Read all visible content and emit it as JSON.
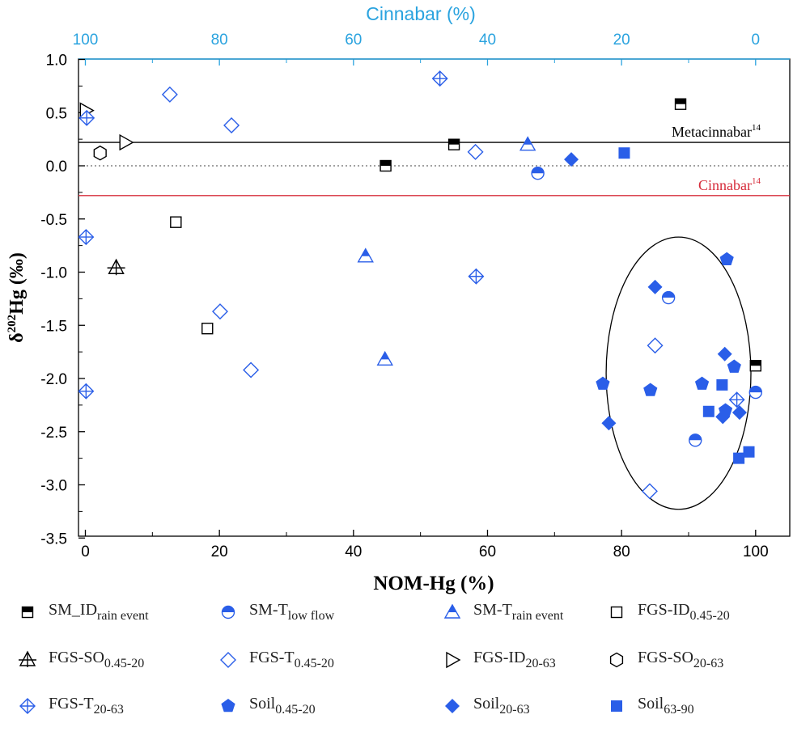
{
  "chart_data": {
    "type": "scatter",
    "xlabel": "NOM-Hg (%)",
    "ylabel_main": "δ",
    "ylabel_sup": "202",
    "ylabel_rest": "Hg (‰)",
    "top_axis_label": "Cinnabar (%)",
    "xlim": [
      -1,
      105
    ],
    "ylim": [
      -3.5,
      1.0
    ],
    "x_ticks": [
      0,
      20,
      40,
      60,
      80,
      100
    ],
    "x_tick_labels": [
      "0",
      "20",
      "40",
      "60",
      "80",
      "100"
    ],
    "y_ticks": [
      1.0,
      0.5,
      0.0,
      -0.5,
      -1.0,
      -1.5,
      -2.0,
      -2.5,
      -3.0,
      -3.5
    ],
    "y_tick_labels": [
      "1.0",
      "0.5",
      "0.0",
      "-0.5",
      "-1.0",
      "-1.5",
      "-2.0",
      "-2.5",
      "-3.0",
      "-3.5"
    ],
    "top_ticks": [
      100,
      80,
      60,
      40,
      20,
      0
    ],
    "top_tick_labels": [
      "100",
      "80",
      "60",
      "40",
      "20",
      "0"
    ],
    "reference_lines": [
      {
        "name": "Metacinnabar",
        "sup": "14",
        "y": 0.22,
        "color": "#000000"
      },
      {
        "name": "Cinnabar",
        "sup": "14",
        "y": -0.28,
        "color": "#d62b3a"
      }
    ],
    "zero_line": 0.0,
    "ellipse": {
      "cx": 88.5,
      "cy": -1.95,
      "rx": 10.8,
      "ry": 1.28
    },
    "series": [
      {
        "name": "SM_ID",
        "sub": "rain event",
        "marker": "square-half",
        "color": "#000000",
        "points": [
          [
            44.8,
            0.0
          ],
          [
            55,
            0.2
          ],
          [
            88.8,
            0.58
          ],
          [
            100,
            -1.88
          ]
        ]
      },
      {
        "name": "SM-T",
        "sub": "low flow",
        "marker": "circle-half",
        "color": "#2a5ee8",
        "points": [
          [
            67.5,
            -0.07
          ],
          [
            87,
            -1.24
          ],
          [
            91,
            -2.58
          ],
          [
            100,
            -2.13
          ]
        ]
      },
      {
        "name": "SM-T",
        "sub": "rain event",
        "marker": "triangle-half",
        "color": "#2a5ee8",
        "points": [
          [
            41.8,
            -0.85
          ],
          [
            44.7,
            -1.82
          ],
          [
            66,
            0.2
          ]
        ]
      },
      {
        "name": "FGS-ID",
        "sub": "0.45-20",
        "marker": "square-open",
        "color": "#000000",
        "points": [
          [
            13.5,
            -0.53
          ],
          [
            18.2,
            -1.53
          ]
        ]
      },
      {
        "name": "FGS-SO",
        "sub": "0.45-20",
        "marker": "triangle-cross",
        "color": "#000000",
        "points": [
          [
            4.6,
            -0.96
          ]
        ]
      },
      {
        "name": "FGS-T",
        "sub": "0.45-20",
        "marker": "diamond-open",
        "color": "#2a5ee8",
        "points": [
          [
            12.6,
            0.67
          ],
          [
            21.8,
            0.38
          ],
          [
            20.1,
            -1.37
          ],
          [
            24.7,
            -1.92
          ],
          [
            58.2,
            0.13
          ],
          [
            85,
            -1.69
          ],
          [
            84.2,
            -3.06
          ]
        ]
      },
      {
        "name": "FGS-ID",
        "sub": "20-63",
        "marker": "triangle-right",
        "color": "#000000",
        "points": [
          [
            0.1,
            0.52
          ],
          [
            6.0,
            0.22
          ]
        ]
      },
      {
        "name": "FGS-SO",
        "sub": "20-63",
        "marker": "hexagon-open",
        "color": "#000000",
        "points": [
          [
            2.2,
            0.12
          ]
        ]
      },
      {
        "name": "FGS-T",
        "sub": "20-63",
        "marker": "diamond-cross",
        "color": "#2a5ee8",
        "points": [
          [
            52.9,
            0.82
          ],
          [
            0.2,
            0.45
          ],
          [
            0.1,
            -0.67
          ],
          [
            0.1,
            -2.12
          ],
          [
            58.3,
            -1.04
          ],
          [
            97.2,
            -2.2
          ]
        ]
      },
      {
        "name": "Soil",
        "sub": "0.45-20",
        "marker": "pentagon",
        "color": "#2a5ee8",
        "points": [
          [
            77.2,
            -2.05
          ],
          [
            84.3,
            -2.11
          ],
          [
            92,
            -2.05
          ],
          [
            95.7,
            -0.88
          ],
          [
            96.8,
            -1.89
          ],
          [
            95.5,
            -2.3
          ]
        ]
      },
      {
        "name": "Soil",
        "sub": "20-63",
        "marker": "diamond",
        "color": "#2a5ee8",
        "points": [
          [
            72.5,
            0.06
          ],
          [
            78.1,
            -2.42
          ],
          [
            85,
            -1.14
          ],
          [
            95.4,
            -1.77
          ],
          [
            95.1,
            -2.36
          ],
          [
            97.6,
            -2.32
          ]
        ]
      },
      {
        "name": "Soil",
        "sub": "63-90",
        "marker": "square",
        "color": "#2a5ee8",
        "points": [
          [
            80.4,
            0.12
          ],
          [
            93,
            -2.31
          ],
          [
            95,
            -2.06
          ],
          [
            97.5,
            -2.75
          ],
          [
            99,
            -2.69
          ]
        ]
      }
    ]
  }
}
